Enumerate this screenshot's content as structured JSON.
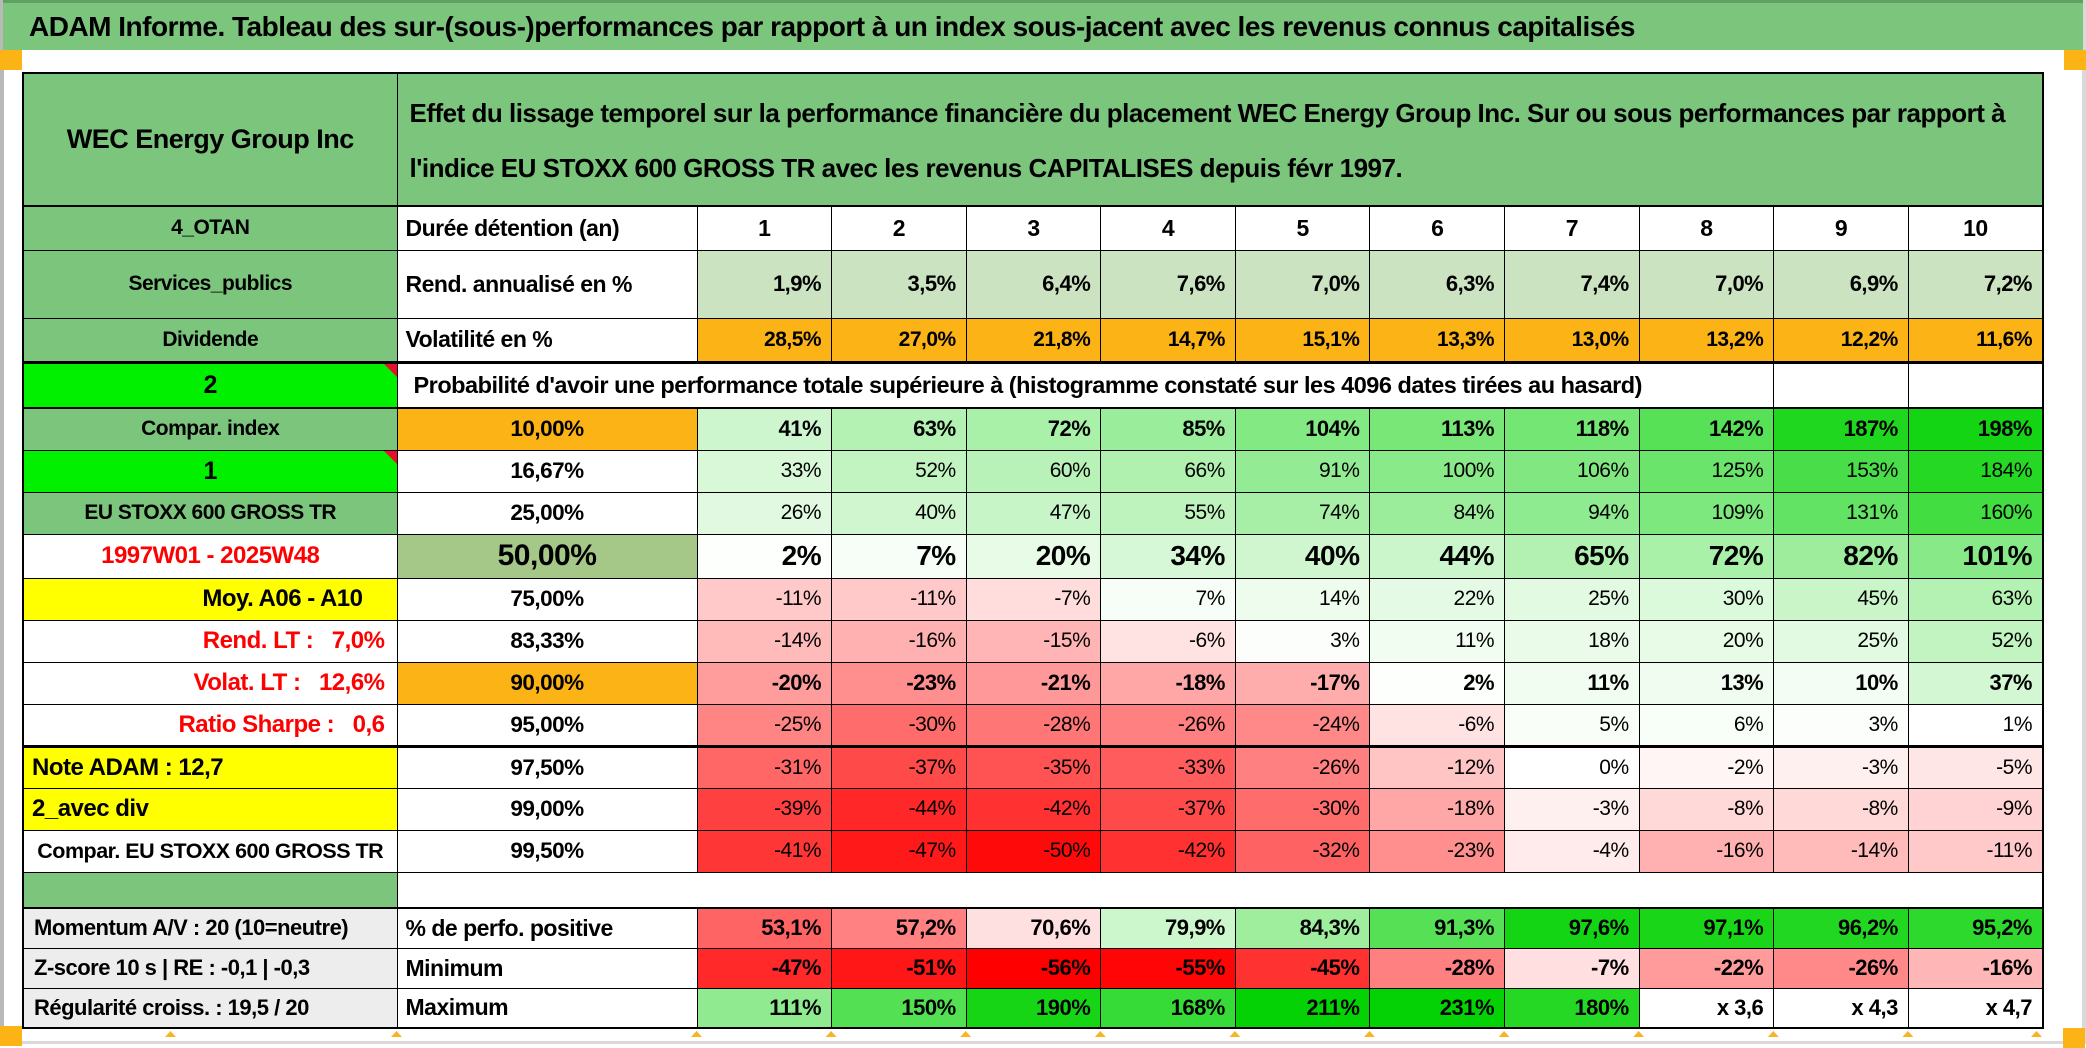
{
  "title": "ADAM Informe. Tableau des sur-(sous-)performances par rapport à un index sous-jacent avec les revenus connus capitalisés",
  "header": {
    "company": "WEC Energy Group Inc",
    "description": "Effet du lissage temporel sur la performance financière du placement WEC Energy Group Inc. Sur ou sous performances par rapport à l'indice EU STOXX 600 GROSS TR avec les revenus CAPITALISES depuis févr 1997."
  },
  "colors": {
    "green_medium": "#7CC57D",
    "green_bright": "#00F000",
    "green_light_row": "#CBE3C1",
    "green_sage": "#A5C787",
    "orange": "#FBB316",
    "yellow": "#FFFF00",
    "gray_label": "#EDEDED",
    "red_text": "#FF0000",
    "note_marker": "#E8112D"
  },
  "rows": {
    "duration": {
      "left": "4_OTAN",
      "label": "Durée détention (an)",
      "years": [
        "1",
        "2",
        "3",
        "4",
        "5",
        "6",
        "7",
        "8",
        "9",
        "10"
      ]
    },
    "annualized": {
      "left": "Services_publics",
      "label": "Rend. annualisé en %",
      "values": [
        "1,9%",
        "3,5%",
        "6,4%",
        "7,6%",
        "7,0%",
        "6,3%",
        "7,4%",
        "7,0%",
        "6,9%",
        "7,2%"
      ]
    },
    "volatility": {
      "left": "Dividende",
      "label": "Volatilité en %",
      "values": [
        "28,5%",
        "27,0%",
        "21,8%",
        "14,7%",
        "15,1%",
        "13,3%",
        "13,0%",
        "13,2%",
        "12,2%",
        "11,6%"
      ]
    },
    "prob_header": {
      "left": "2",
      "label": "Probabilité d'avoir une performance totale supérieure à (histogramme constaté sur les 4096 dates tirées au hasard)"
    },
    "probability": [
      {
        "left": "Compar. index",
        "left_type": "green",
        "quantile": "10,00%",
        "quantile_bg": "orange",
        "weight": "bold",
        "values": [
          41,
          63,
          72,
          85,
          104,
          113,
          118,
          142,
          187,
          198
        ]
      },
      {
        "left": "1",
        "left_type": "bright",
        "quantile": "16,67%",
        "quantile_bg": "",
        "weight": "normal",
        "values": [
          33,
          52,
          60,
          66,
          91,
          100,
          106,
          125,
          153,
          184
        ]
      },
      {
        "left": "EU STOXX 600 GROSS TR",
        "left_type": "green",
        "quantile": "25,00%",
        "quantile_bg": "",
        "weight": "normal",
        "values": [
          26,
          40,
          47,
          55,
          74,
          84,
          94,
          109,
          131,
          160
        ]
      },
      {
        "left": "1997W01 - 2025W48",
        "left_type": "red-center",
        "quantile": "50,00%",
        "quantile_bg": "sage",
        "weight": "big",
        "values": [
          2,
          7,
          20,
          34,
          40,
          44,
          65,
          72,
          82,
          101
        ]
      },
      {
        "left": "Moy. A06 - A10",
        "left_type": "yellow-right",
        "quantile": "75,00%",
        "quantile_bg": "",
        "weight": "normal",
        "values": [
          -11,
          -11,
          -7,
          7,
          14,
          22,
          25,
          30,
          45,
          63
        ]
      },
      {
        "left": "Rend. LT :   7,0%",
        "left_type": "red-right",
        "quantile": "83,33%",
        "quantile_bg": "",
        "weight": "normal",
        "values": [
          -14,
          -16,
          -15,
          -6,
          3,
          11,
          18,
          20,
          25,
          52
        ]
      },
      {
        "left": "Volat. LT :   12,6%",
        "left_type": "red-right",
        "quantile": "90,00%",
        "quantile_bg": "orange",
        "weight": "bold",
        "values": [
          -20,
          -23,
          -21,
          -18,
          -17,
          2,
          11,
          13,
          10,
          37
        ]
      },
      {
        "left": "Ratio Sharpe :   0,6",
        "left_type": "red-right",
        "quantile": "95,00%",
        "quantile_bg": "",
        "weight": "normal",
        "values": [
          -25,
          -30,
          -28,
          -26,
          -24,
          -6,
          5,
          6,
          3,
          1
        ]
      },
      {
        "left": "Note ADAM : 12,7",
        "left_type": "yellow-left",
        "quantile": "97,50%",
        "quantile_bg": "",
        "weight": "normal",
        "thick_top": true,
        "values": [
          -31,
          -37,
          -35,
          -33,
          -26,
          -12,
          0,
          -2,
          -3,
          -5
        ]
      },
      {
        "left": "2_avec div",
        "left_type": "yellow-left",
        "quantile": "99,00%",
        "quantile_bg": "",
        "weight": "normal",
        "values": [
          -39,
          -44,
          -42,
          -37,
          -30,
          -18,
          -3,
          -8,
          -8,
          -9
        ]
      },
      {
        "left": "Compar. EU STOXX 600 GROSS TR",
        "left_type": "white-center",
        "quantile": "99,50%",
        "quantile_bg": "",
        "weight": "normal",
        "values": [
          -41,
          -47,
          -50,
          -42,
          -32,
          -23,
          -4,
          -16,
          -14,
          -11
        ]
      }
    ],
    "summary": [
      {
        "left": "Momentum A/V : 20 (10=neutre)",
        "label": "% de perfo. positive",
        "scale": "perfo",
        "values": [
          "53,1%",
          "57,2%",
          "70,6%",
          "79,9%",
          "84,3%",
          "91,3%",
          "97,6%",
          "97,1%",
          "96,2%",
          "95,2%"
        ]
      },
      {
        "left": "Z-score 10 s | RE : -0,1 | -0,3",
        "label": "Minimum",
        "scale": "min",
        "values": [
          "-47%",
          "-51%",
          "-56%",
          "-55%",
          "-45%",
          "-28%",
          "-7%",
          "-22%",
          "-26%",
          "-16%"
        ]
      },
      {
        "left": "Régularité croiss. : 19,5 / 20",
        "label": "Maximum",
        "scale": "max",
        "values": [
          "111%",
          "150%",
          "190%",
          "168%",
          "211%",
          "231%",
          "180%",
          "x 3,6",
          "x 4,3",
          "x 4,7"
        ]
      }
    ]
  }
}
